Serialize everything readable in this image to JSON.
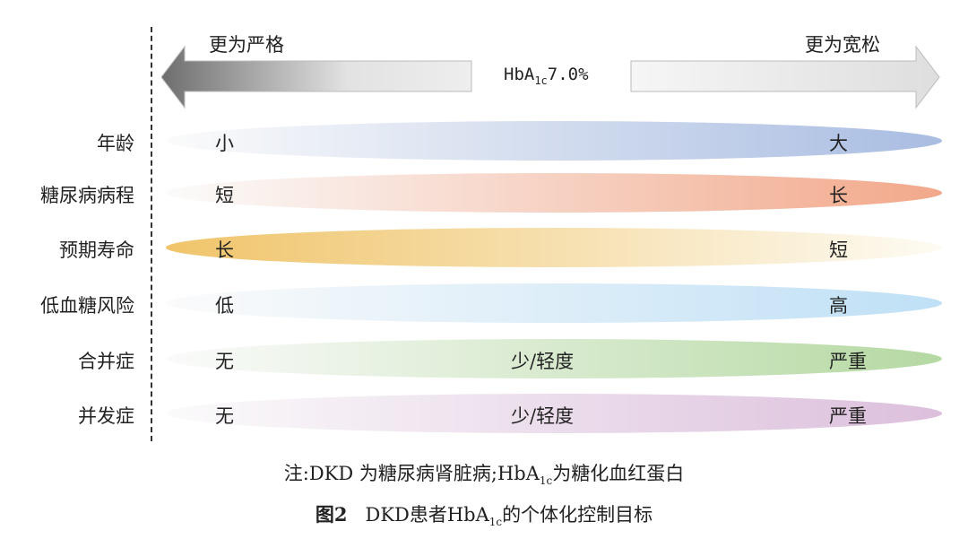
{
  "header": {
    "left_label": "更为严格",
    "right_label": "更为宽松",
    "center_prefix": "HbA",
    "center_sub": "1c",
    "center_value": "7.0%"
  },
  "rows": [
    {
      "label": "年龄",
      "left": "小",
      "mid": "",
      "right": "大",
      "color": "#a9bde2"
    },
    {
      "label": "糖尿病病程",
      "left": "短",
      "mid": "",
      "right": "长",
      "color": "#f2a88a"
    },
    {
      "label": "预期寿命",
      "left": "长",
      "mid": "",
      "right": "短",
      "color": "#f0c46a"
    },
    {
      "label": "低血糖风险",
      "left": "低",
      "mid": "",
      "right": "高",
      "color": "#bfe0f6"
    },
    {
      "label": "合并症",
      "left": "无",
      "mid": "少/轻度",
      "right": "严重",
      "color": "#b5d9a2"
    },
    {
      "label": "并发症",
      "left": "无",
      "mid": "少/轻度",
      "right": "严重",
      "color": "#dcbfdc"
    }
  ],
  "note": {
    "prefix": "注:DKD 为糖尿病肾脏病;HbA",
    "sub": "1c",
    "suffix": "为糖化血红蛋白"
  },
  "caption": {
    "fig": "图2",
    "prefix": "DKD患者HbA",
    "sub": "1c",
    "suffix": "的个体化控制目标"
  }
}
